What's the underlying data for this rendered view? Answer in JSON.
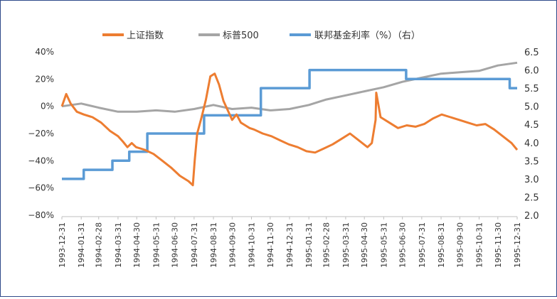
{
  "chart_data": {
    "type": "line",
    "legend_position": "top",
    "grid": false,
    "legend": [
      "上证指数",
      "标普500",
      "联邦基金利率（%）（右）"
    ],
    "colors": {
      "shanghai": "#ED7D31",
      "sp500": "#A5A5A5",
      "fed": "#5B9BD5"
    },
    "y_left": {
      "ticks": [
        "40%",
        "20%",
        "0%",
        "−20%",
        "−40%",
        "−60%",
        "−80%"
      ],
      "tick_values": [
        40,
        20,
        0,
        -20,
        -40,
        -60,
        -80
      ],
      "range": [
        -80,
        40
      ],
      "unit": "%"
    },
    "y_right": {
      "ticks": [
        "6.5",
        "6.0",
        "5.5",
        "5.0",
        "4.5",
        "4.0",
        "3.5",
        "3.0",
        "2.5",
        "2.0"
      ],
      "tick_values": [
        6.5,
        6.0,
        5.5,
        5.0,
        4.5,
        4.0,
        3.5,
        3.0,
        2.5,
        2.0
      ],
      "range": [
        2.0,
        6.5
      ]
    },
    "x_ticks": [
      "1993-12-31",
      "1994-01-31",
      "1994-02-28",
      "1994-03-31",
      "1994-04-30",
      "1994-05-31",
      "1994-06-30",
      "1994-07-31",
      "1994-08-31",
      "1994-09-30",
      "1994-10-31",
      "1994-11-30",
      "1994-12-31",
      "1995-01-31",
      "1995-02-28",
      "1995-03-31",
      "1995-04-30",
      "1995-05-31",
      "1995-06-30",
      "1995-07-31",
      "1995-08-31",
      "1995-09-30",
      "1995-10-31",
      "1995-11-30",
      "1995-12-31"
    ],
    "series": [
      {
        "name": "上证指数",
        "axis": "left",
        "x": [
          "1993-12-31",
          "1994-01-07",
          "1994-01-14",
          "1994-01-24",
          "1994-02-04",
          "1994-02-18",
          "1994-03-04",
          "1994-03-18",
          "1994-03-31",
          "1994-04-08",
          "1994-04-15",
          "1994-04-22",
          "1994-04-29",
          "1994-05-13",
          "1994-05-27",
          "1994-06-10",
          "1994-06-24",
          "1994-07-08",
          "1994-07-22",
          "1994-07-29",
          "1994-08-01",
          "1994-08-05",
          "1994-08-12",
          "1994-08-19",
          "1994-08-26",
          "1994-09-02",
          "1994-09-09",
          "1994-09-16",
          "1994-09-23",
          "1994-09-30",
          "1994-10-07",
          "1994-10-14",
          "1994-10-21",
          "1994-10-28",
          "1994-11-04",
          "1994-11-18",
          "1994-12-02",
          "1994-12-16",
          "1994-12-30",
          "1995-01-13",
          "1995-01-27",
          "1995-02-10",
          "1995-02-24",
          "1995-03-10",
          "1995-03-24",
          "1995-04-07",
          "1995-04-21",
          "1995-05-05",
          "1995-05-12",
          "1995-05-18",
          "1995-05-19",
          "1995-05-26",
          "1995-06-09",
          "1995-06-23",
          "1995-07-07",
          "1995-07-21",
          "1995-08-04",
          "1995-08-18",
          "1995-09-01",
          "1995-09-15",
          "1995-09-29",
          "1995-10-13",
          "1995-10-27",
          "1995-11-10",
          "1995-11-24",
          "1995-12-08",
          "1995-12-22",
          "1995-12-31"
        ],
        "values": [
          0,
          9,
          2,
          -4,
          -6,
          -8,
          -12,
          -18,
          -22,
          -26,
          -30,
          -27,
          -30,
          -32,
          -35,
          -40,
          -45,
          -51,
          -55,
          -58,
          -40,
          -20,
          -8,
          5,
          22,
          24,
          16,
          4,
          -3,
          -10,
          -6,
          -12,
          -14,
          -16,
          -17,
          -20,
          -22,
          -25,
          -28,
          -30,
          -33,
          -34,
          -31,
          -28,
          -24,
          -20,
          -25,
          -30,
          -27,
          -10,
          10,
          -8,
          -12,
          -16,
          -14,
          -15,
          -13,
          -9,
          -6,
          -8,
          -10,
          -12,
          -14,
          -13,
          -17,
          -22,
          -27,
          -32
        ]
      },
      {
        "name": "标普500",
        "axis": "left",
        "x": [
          "1993-12-31",
          "1994-01-31",
          "1994-02-28",
          "1994-03-31",
          "1994-04-30",
          "1994-05-31",
          "1994-06-30",
          "1994-07-31",
          "1994-08-31",
          "1994-09-30",
          "1994-10-31",
          "1994-11-30",
          "1994-12-31",
          "1995-01-31",
          "1995-02-28",
          "1995-03-31",
          "1995-04-30",
          "1995-05-31",
          "1995-06-30",
          "1995-07-31",
          "1995-08-31",
          "1995-09-30",
          "1995-10-31",
          "1995-11-30",
          "1995-12-31"
        ],
        "values": [
          0,
          2,
          -1,
          -4,
          -4,
          -3,
          -4,
          -2,
          1,
          -2,
          -1,
          -3,
          -2,
          1,
          5,
          8,
          11,
          14,
          18,
          21,
          24,
          25,
          26,
          30,
          32
        ]
      },
      {
        "name": "联邦基金利率（%）（右）",
        "axis": "right",
        "step": true,
        "x": [
          "1993-12-31",
          "1994-02-04",
          "1994-03-22",
          "1994-04-18",
          "1994-05-17",
          "1994-08-16",
          "1994-11-15",
          "1995-02-01",
          "1995-07-06",
          "1995-12-19",
          "1995-12-31"
        ],
        "values": [
          3.0,
          3.25,
          3.5,
          3.75,
          4.25,
          4.75,
          5.5,
          6.0,
          5.75,
          5.5,
          5.5
        ]
      }
    ]
  }
}
